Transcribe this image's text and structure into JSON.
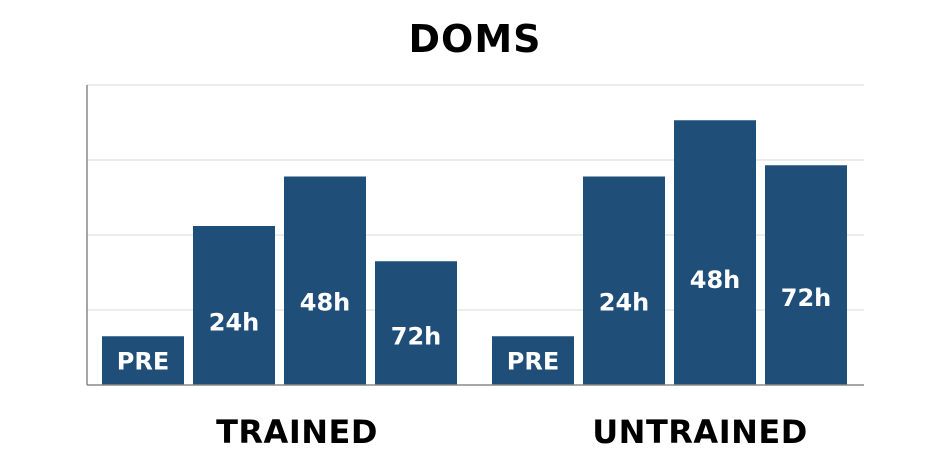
{
  "chart_data": {
    "type": "bar",
    "title": "DOMS",
    "groups": [
      "TRAINED",
      "UNTRAINED"
    ],
    "categories": [
      "PRE",
      "24h",
      "48h",
      "72h"
    ],
    "series": [
      {
        "group": "TRAINED",
        "values": [
          0.65,
          2.12,
          2.78,
          1.65
        ]
      },
      {
        "group": "UNTRAINED",
        "values": [
          0.65,
          2.78,
          3.53,
          2.93
        ]
      }
    ],
    "ylim": [
      0,
      4
    ],
    "grid": true,
    "colors": {
      "bar": "#1f4e79",
      "grid": "#d9d9d9",
      "axis": "#888888",
      "bar_label": "#ffffff"
    }
  }
}
